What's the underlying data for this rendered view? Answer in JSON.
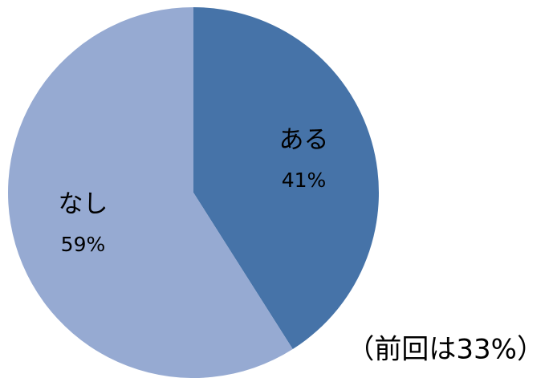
{
  "chart_data": {
    "type": "pie",
    "categories": [
      "ある",
      "なし"
    ],
    "values": [
      41,
      59
    ],
    "value_labels": [
      "41%",
      "59%"
    ],
    "colors": [
      "#4673a8",
      "#96aad2"
    ],
    "annotation": "（前回は33%）"
  }
}
